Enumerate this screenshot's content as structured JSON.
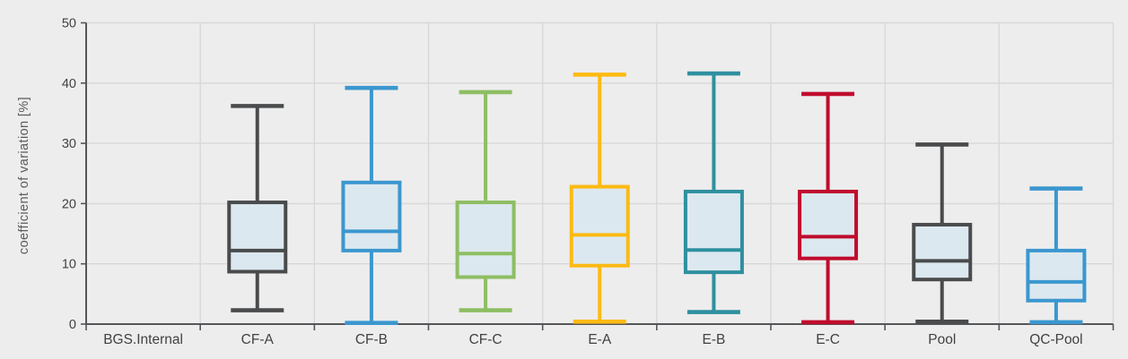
{
  "chart_data": {
    "type": "boxplot",
    "title": "",
    "ylabel": "coefficient of variation [%]",
    "xlabel": "",
    "ylim": [
      0,
      50
    ],
    "yticks": [
      0,
      10,
      20,
      30,
      40,
      50
    ],
    "grid": true,
    "legend": false,
    "background": "#ededed",
    "gridline_color": "#d8d8d8",
    "axis_color": "#55565a",
    "tick_text_color": "#414144",
    "box_fill": "#dce8ef",
    "categories": [
      "BGS.Internal",
      "CF-A",
      "CF-B",
      "CF-C",
      "E-A",
      "E-B",
      "E-C",
      "Pool",
      "QC-Pool"
    ],
    "series": [
      {
        "category": "BGS.Internal",
        "color": null,
        "box": null
      },
      {
        "category": "CF-A",
        "color": "#4a4b4d",
        "box": {
          "min": 2.3,
          "q1": 8.7,
          "median": 12.2,
          "q3": 20.2,
          "max": 36.2
        }
      },
      {
        "category": "CF-B",
        "color": "#3b97cf",
        "box": {
          "min": 0.2,
          "q1": 12.2,
          "median": 15.4,
          "q3": 23.5,
          "max": 39.2
        }
      },
      {
        "category": "CF-C",
        "color": "#8ebe63",
        "box": {
          "min": 2.3,
          "q1": 7.8,
          "median": 11.7,
          "q3": 20.2,
          "max": 38.5
        }
      },
      {
        "category": "E-A",
        "color": "#fcba12",
        "box": {
          "min": 0.4,
          "q1": 9.7,
          "median": 14.8,
          "q3": 22.8,
          "max": 41.4
        }
      },
      {
        "category": "E-B",
        "color": "#2f909f",
        "box": {
          "min": 2.0,
          "q1": 8.6,
          "median": 12.3,
          "q3": 22.0,
          "max": 41.6
        }
      },
      {
        "category": "E-C",
        "color": "#c00c2d",
        "box": {
          "min": 0.3,
          "q1": 10.9,
          "median": 14.5,
          "q3": 22.0,
          "max": 38.2
        }
      },
      {
        "category": "Pool",
        "color": "#4a4b4d",
        "box": {
          "min": 0.4,
          "q1": 7.4,
          "median": 10.5,
          "q3": 16.5,
          "max": 29.8
        }
      },
      {
        "category": "QC-Pool",
        "color": "#3b97cf",
        "box": {
          "min": 0.3,
          "q1": 3.9,
          "median": 7.0,
          "q3": 12.2,
          "max": 22.5
        }
      }
    ]
  }
}
